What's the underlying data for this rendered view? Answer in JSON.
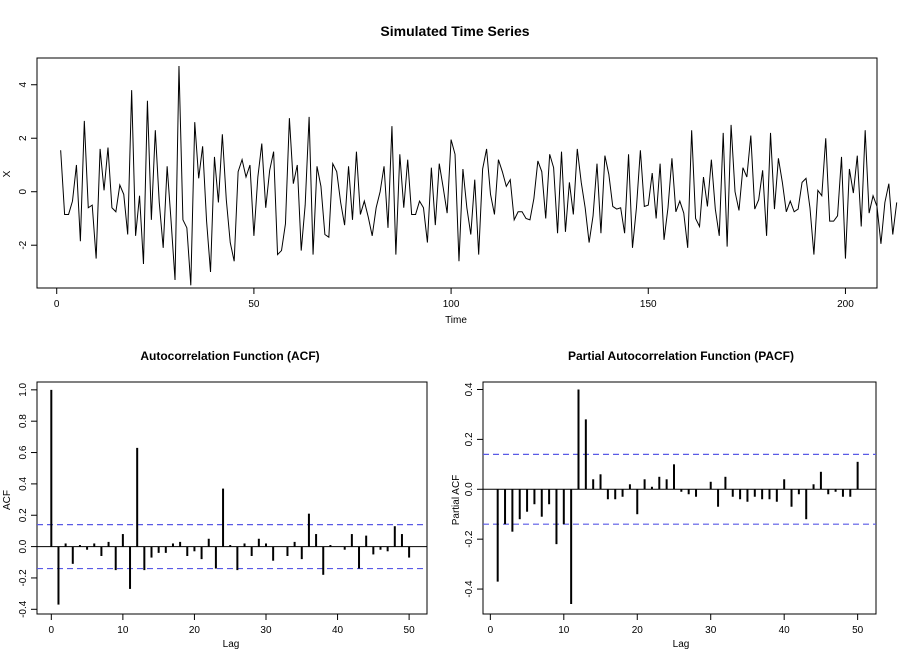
{
  "chart_data": [
    {
      "type": "line",
      "title": "Simulated Time Series",
      "xlabel": "Time",
      "ylabel": "X",
      "xlim": [
        -5,
        208
      ],
      "ylim": [
        -3.6,
        5.0
      ],
      "xticks": [
        "0",
        "50",
        "100",
        "150",
        "200"
      ],
      "yticks": [
        "-2",
        "0",
        "2",
        "4"
      ],
      "line_color": "#000000",
      "x_start": 1,
      "values": [
        1.55,
        -0.85,
        -0.85,
        -0.35,
        1.0,
        -1.85,
        2.65,
        -0.6,
        -0.5,
        -2.5,
        1.6,
        0.05,
        1.65,
        -0.6,
        -0.75,
        0.25,
        -0.1,
        -1.6,
        3.8,
        -1.65,
        -0.15,
        -2.7,
        3.4,
        -1.05,
        2.3,
        -0.4,
        -2.1,
        0.95,
        -1.1,
        -3.3,
        4.7,
        -1.05,
        -1.35,
        -3.5,
        2.6,
        0.5,
        1.7,
        -1.1,
        -3.0,
        1.3,
        -0.4,
        2.15,
        -0.3,
        -1.9,
        -2.6,
        0.75,
        1.2,
        0.55,
        1.0,
        -1.65,
        0.55,
        1.8,
        -0.6,
        0.8,
        1.5,
        -2.35,
        -2.2,
        -1.2,
        2.75,
        0.3,
        1.0,
        -2.2,
        -0.5,
        2.8,
        -2.35,
        0.95,
        0.2,
        -1.6,
        -1.7,
        1.05,
        0.75,
        -0.4,
        -1.25,
        0.95,
        -1.05,
        1.5,
        -0.85,
        -0.35,
        -0.95,
        -1.65,
        -0.6,
        0.0,
        0.95,
        -1.35,
        2.45,
        -2.35,
        1.4,
        -0.6,
        1.2,
        -0.85,
        -0.85,
        -0.35,
        -0.6,
        -1.9,
        0.9,
        -1.25,
        1.05,
        0.15,
        -0.8,
        1.95,
        1.4,
        -2.6,
        0.85,
        -0.6,
        -1.6,
        0.45,
        -2.35,
        0.85,
        1.6,
        -0.1,
        -0.85,
        1.2,
        0.75,
        0.2,
        0.45,
        -1.05,
        -0.75,
        -0.75,
        -1.0,
        -1.05,
        -0.25,
        1.15,
        0.75,
        -1.0,
        1.4,
        0.9,
        -1.55,
        1.5,
        -1.5,
        0.35,
        -0.85,
        1.6,
        0.35,
        -0.6,
        -1.9,
        -0.9,
        1.05,
        -1.55,
        1.35,
        0.65,
        -0.55,
        -0.65,
        -0.6,
        -1.55,
        1.4,
        -2.1,
        -0.6,
        1.55,
        -0.55,
        -0.5,
        0.7,
        -1.0,
        1.05,
        -1.8,
        -0.6,
        1.25,
        -0.75,
        -0.35,
        -0.8,
        -2.1,
        2.3,
        -1.0,
        -1.3,
        0.55,
        -0.55,
        1.2,
        -0.65,
        -1.65,
        2.2,
        -2.05,
        2.5,
        0.0,
        -0.7,
        0.9,
        0.55,
        2.1,
        -0.65,
        -0.3,
        0.8,
        -1.65,
        2.2,
        -0.65,
        1.25,
        0.35,
        -0.75,
        -0.35,
        -0.75,
        -0.65,
        0.35,
        0.5,
        -0.6,
        -2.35,
        0.05,
        -0.15,
        2.0,
        -1.1,
        -1.1,
        -0.9,
        1.3,
        -2.5,
        0.85,
        -0.05,
        1.35,
        -1.3,
        2.3,
        -0.8,
        -0.15,
        -0.55,
        -1.95,
        -0.4,
        0.3,
        -1.6,
        -0.4
      ]
    },
    {
      "type": "bar",
      "title": "Autocorrelation Function (ACF)",
      "xlabel": "Lag",
      "ylabel": "ACF",
      "xlim": [
        -2,
        52.5
      ],
      "ylim": [
        -0.43,
        1.05
      ],
      "xticks": [
        "0",
        "10",
        "20",
        "30",
        "40",
        "50"
      ],
      "yticks": [
        "-0.4",
        "-0.2",
        "0.0",
        "0.2",
        "0.4",
        "0.6",
        "0.8",
        "1.0"
      ],
      "confidence_bound": 0.14,
      "bound_color": "#5a5ae6",
      "lag_start": 0,
      "values": [
        1.0,
        -0.37,
        0.02,
        -0.11,
        0.01,
        -0.02,
        0.02,
        -0.06,
        0.03,
        -0.15,
        0.08,
        -0.27,
        0.63,
        -0.15,
        -0.07,
        -0.04,
        -0.04,
        0.02,
        0.03,
        -0.06,
        -0.03,
        -0.08,
        0.05,
        -0.14,
        0.37,
        0.01,
        -0.15,
        0.02,
        -0.06,
        0.05,
        0.02,
        -0.09,
        0.0,
        -0.06,
        0.03,
        -0.08,
        0.21,
        0.08,
        -0.18,
        0.01,
        0.0,
        -0.02,
        0.08,
        -0.14,
        0.07,
        -0.05,
        -0.02,
        -0.03,
        0.13,
        0.08,
        -0.07
      ]
    },
    {
      "type": "bar",
      "title": "Partial Autocorrelation Function (PACF)",
      "xlabel": "Lag",
      "ylabel": "Partial ACF",
      "xlim": [
        -1,
        52.5
      ],
      "ylim": [
        -0.5,
        0.43
      ],
      "xticks": [
        "0",
        "10",
        "20",
        "30",
        "40",
        "50"
      ],
      "yticks": [
        "-0.4",
        "-0.2",
        "0.0",
        "0.2",
        "0.4"
      ],
      "confidence_bound": 0.14,
      "bound_color": "#5a5ae6",
      "lag_start": 1,
      "values": [
        -0.37,
        -0.14,
        -0.17,
        -0.12,
        -0.09,
        -0.06,
        -0.11,
        -0.06,
        -0.22,
        -0.14,
        -0.46,
        0.4,
        0.28,
        0.04,
        0.06,
        -0.04,
        -0.04,
        -0.03,
        0.02,
        -0.1,
        0.04,
        0.01,
        0.05,
        0.04,
        0.1,
        -0.01,
        -0.02,
        -0.03,
        0.0,
        0.03,
        -0.07,
        0.05,
        -0.03,
        -0.04,
        -0.05,
        -0.03,
        -0.04,
        -0.04,
        -0.05,
        0.04,
        -0.07,
        -0.02,
        -0.12,
        0.02,
        0.07,
        -0.02,
        -0.01,
        -0.03,
        -0.03,
        0.11
      ]
    }
  ]
}
